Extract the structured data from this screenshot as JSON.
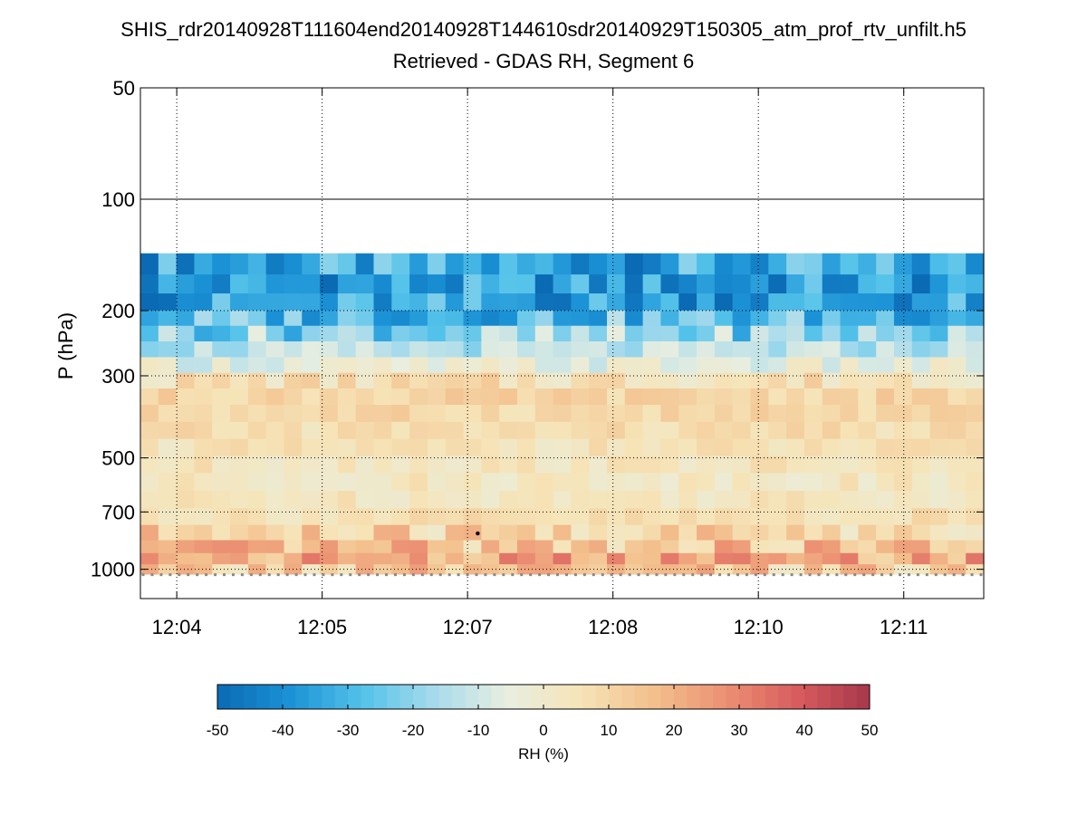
{
  "chart_data": {
    "type": "heatmap",
    "title": "SHIS_rdr20140928T111604end20140928T144610sdr20140929T150305_atm_prof_rtv_unfilt.h5",
    "subtitle": "Retrieved - GDAS RH, Segment 6",
    "ylabel": "P (hPa)",
    "yscale": "log",
    "yreversed": true,
    "ylim": [
      50,
      1200
    ],
    "y_ticks": [
      50,
      100,
      200,
      300,
      500,
      700,
      1000
    ],
    "y_tick_labels": [
      "50",
      "100",
      "200",
      "300",
      "500",
      "700",
      "1000"
    ],
    "x_tick_labels": [
      "12:04",
      "12:05",
      "12:07",
      "12:08",
      "12:10",
      "12:11"
    ],
    "grid": "dotted",
    "colorbar": {
      "label": "RH (%)",
      "range": [
        -50,
        50
      ],
      "ticks": [
        -50,
        -40,
        -30,
        -20,
        -10,
        0,
        10,
        20,
        30,
        40,
        50
      ],
      "tick_labels": [
        "-50",
        "-40",
        "-30",
        "-20",
        "-10",
        "0",
        "10",
        "20",
        "30",
        "40",
        "50"
      ],
      "colormap": "blue-white-red (diverging)"
    },
    "pressure_levels": [
      150,
      170,
      190,
      210,
      230,
      255,
      280,
      310,
      340,
      380,
      420,
      470,
      520,
      580,
      650,
      720,
      800,
      870,
      940,
      1000
    ],
    "profile_columns": 47,
    "rh_difference_by_level": [
      -35,
      -38,
      -36,
      -28,
      -20,
      -14,
      -5,
      6,
      10,
      9,
      7,
      5,
      4,
      3,
      4,
      6,
      10,
      15,
      22,
      12
    ],
    "marker": {
      "time": "12:07",
      "pressure": 800
    }
  },
  "colors": {
    "cmap_neg": [
      "#0b6ab4",
      "#1b92d6",
      "#53c2ea",
      "#a8dbec",
      "#e8eee0"
    ],
    "cmap_pos": [
      "#f6e4b8",
      "#f3c08d",
      "#ec9173",
      "#d85c5e",
      "#a7374b"
    ],
    "frame": "#000000",
    "grid": "#000000",
    "surface_marker": "#888888"
  }
}
